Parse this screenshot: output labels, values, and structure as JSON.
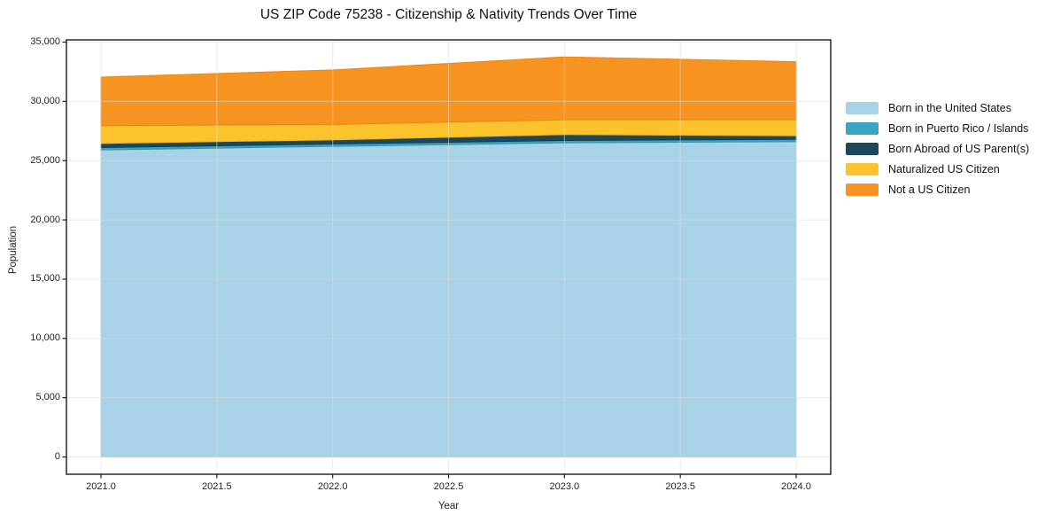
{
  "page": {
    "background": "#ffffff"
  },
  "chart_data": {
    "type": "area",
    "stacked": true,
    "title": "US ZIP Code 75238 - Citizenship & Nativity Trends Over Time",
    "xlabel": "Year",
    "ylabel": "Population",
    "x": [
      2021,
      2022,
      2023,
      2024
    ],
    "series": [
      {
        "name": "Born in the United States",
        "color": "#a8d2e6",
        "edge": "#95c6de",
        "values": [
          25900,
          26200,
          26500,
          26600
        ]
      },
      {
        "name": "Born in Puerto Rico / Islands",
        "color": "#3aa5c0",
        "edge": "#3295b0",
        "values": [
          200,
          200,
          200,
          200
        ]
      },
      {
        "name": "Born Abroad of US Parent(s)",
        "color": "#1d485c",
        "edge": "#173c4d",
        "values": [
          350,
          350,
          500,
          300
        ]
      },
      {
        "name": "Naturalized US Citizen",
        "color": "#fcc32d",
        "edge": "#f0b41c",
        "values": [
          1500,
          1300,
          1250,
          1350
        ]
      },
      {
        "name": "Not a US Citizen",
        "color": "#f79421",
        "edge": "#ec8512",
        "values": [
          4100,
          4600,
          5300,
          4900
        ]
      }
    ],
    "totals": [
      32050,
      32650,
      33750,
      33450
    ],
    "xlim": [
      2020.85,
      2024.15
    ],
    "ylim": [
      0,
      35000
    ],
    "xticks": [
      {
        "v": 2021.0,
        "label": "2021.0"
      },
      {
        "v": 2021.5,
        "label": "2021.5"
      },
      {
        "v": 2022.0,
        "label": "2022.0"
      },
      {
        "v": 2022.5,
        "label": "2022.5"
      },
      {
        "v": 2023.0,
        "label": "2023.0"
      },
      {
        "v": 2023.5,
        "label": "2023.5"
      },
      {
        "v": 2024.0,
        "label": "2024.0"
      }
    ],
    "yticks": [
      {
        "v": 0,
        "label": "0"
      },
      {
        "v": 5000,
        "label": "5,000"
      },
      {
        "v": 10000,
        "label": "10,000"
      },
      {
        "v": 15000,
        "label": "15,000"
      },
      {
        "v": 20000,
        "label": "20,000"
      },
      {
        "v": 25000,
        "label": "25,000"
      },
      {
        "v": 30000,
        "label": "30,000"
      },
      {
        "v": 35000,
        "label": "35,000"
      }
    ],
    "grid": true,
    "grid_color": "#dcdcdc",
    "spine_color": "#1a1a1a",
    "legend_position": "right"
  }
}
